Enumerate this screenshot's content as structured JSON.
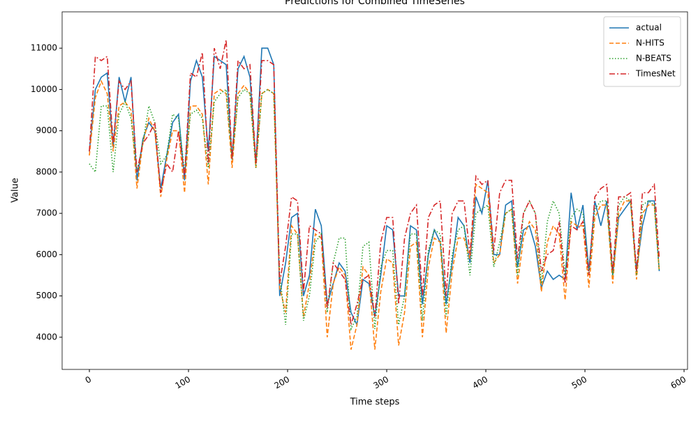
{
  "chart_data": {
    "type": "line",
    "title": "Predictions for Combined TimeSeries",
    "x_label": "Time steps",
    "y_label": "Value",
    "x": [
      0,
      6,
      12,
      18,
      24,
      30,
      36,
      42,
      48,
      54,
      60,
      66,
      72,
      78,
      84,
      90,
      96,
      102,
      108,
      114,
      120,
      126,
      132,
      138,
      144,
      150,
      156,
      162,
      168,
      174,
      180,
      186,
      192,
      198,
      204,
      210,
      216,
      222,
      228,
      234,
      240,
      246,
      252,
      258,
      264,
      270,
      276,
      282,
      288,
      294,
      300,
      306,
      312,
      318,
      324,
      330,
      336,
      342,
      348,
      354,
      360,
      366,
      372,
      378,
      384,
      390,
      396,
      402,
      408,
      414,
      420,
      426,
      432,
      438,
      444,
      450,
      456,
      462,
      468,
      474,
      480,
      486,
      492,
      498,
      504,
      510,
      516,
      522,
      528,
      534,
      540,
      546,
      552,
      558,
      564,
      570,
      575
    ],
    "series": [
      {
        "name": "actual",
        "color": "#1f77b4",
        "linestyle": "solid",
        "values": [
          8500,
          10000,
          10300,
          10400,
          8600,
          10300,
          9700,
          10300,
          7800,
          8800,
          9200,
          9000,
          7600,
          8400,
          9200,
          9400,
          7800,
          10200,
          10700,
          10300,
          8500,
          10800,
          10700,
          10600,
          8300,
          10500,
          10800,
          10300,
          8200,
          11000,
          11000,
          10600,
          5000,
          5800,
          6900,
          7000,
          5000,
          5500,
          7100,
          6700,
          4800,
          5300,
          5800,
          5600,
          4600,
          4300,
          5400,
          5300,
          4500,
          5500,
          6700,
          6600,
          5000,
          5000,
          6700,
          6600,
          4800,
          6000,
          6600,
          6300,
          4800,
          5800,
          6900,
          6700,
          5800,
          7400,
          7000,
          7800,
          6000,
          6000,
          7200,
          7300,
          5700,
          6600,
          6700,
          6200,
          5200,
          5600,
          5400,
          5500,
          5400,
          7500,
          6600,
          7200,
          5600,
          7300,
          6700,
          7300,
          5500,
          6900,
          7100,
          7300,
          5600,
          6700,
          7300,
          7300,
          5600
        ]
      },
      {
        "name": "N-HITS",
        "color": "#ff7f0e",
        "linestyle": "dashed",
        "values": [
          8400,
          9800,
          10200,
          9900,
          8500,
          9600,
          9700,
          9500,
          7600,
          8700,
          9300,
          9000,
          7400,
          8300,
          9000,
          9000,
          7500,
          9600,
          9600,
          9400,
          7700,
          9900,
          10000,
          9900,
          8100,
          9900,
          10100,
          9900,
          8100,
          9900,
          10000,
          9900,
          5200,
          4600,
          6700,
          6500,
          4500,
          5300,
          6500,
          6400,
          4000,
          5300,
          5700,
          5500,
          3700,
          4300,
          5700,
          5500,
          3700,
          5100,
          5900,
          5800,
          3800,
          4600,
          6200,
          6300,
          4000,
          5700,
          6400,
          6300,
          4100,
          5600,
          6400,
          6400,
          5900,
          7700,
          7600,
          7500,
          5800,
          6000,
          7000,
          7100,
          5300,
          6400,
          6800,
          6600,
          5100,
          6300,
          6700,
          6500,
          4900,
          6800,
          6700,
          6700,
          5200,
          6900,
          7200,
          7200,
          5300,
          7000,
          7300,
          7300,
          5400,
          7000,
          7200,
          7200,
          5600
        ]
      },
      {
        "name": "N-BEATS",
        "color": "#2ca02c",
        "linestyle": "dotted",
        "values": [
          8200,
          8000,
          9600,
          9600,
          8000,
          9400,
          9700,
          9300,
          8000,
          8700,
          9600,
          9200,
          8200,
          8400,
          9400,
          9300,
          8000,
          9400,
          9500,
          9300,
          8100,
          9700,
          9900,
          10000,
          8300,
          9800,
          10000,
          9900,
          8100,
          9900,
          10000,
          9900,
          5500,
          4300,
          6500,
          6500,
          4400,
          5000,
          6300,
          6500,
          4600,
          5800,
          6400,
          6400,
          4200,
          4500,
          6200,
          6300,
          4200,
          5700,
          6100,
          6100,
          4300,
          5000,
          6500,
          6500,
          4400,
          6100,
          6600,
          6500,
          4500,
          6000,
          6600,
          6700,
          5500,
          7000,
          7100,
          7200,
          5700,
          6300,
          7000,
          7100,
          5500,
          7000,
          7300,
          7000,
          5300,
          6800,
          7300,
          7000,
          5500,
          6900,
          7100,
          7000,
          5500,
          7100,
          7300,
          7300,
          5500,
          7200,
          7400,
          7300,
          5500,
          7200,
          7300,
          7200,
          5600
        ]
      },
      {
        "name": "TimesNet",
        "color": "#d62728",
        "linestyle": "dashdot",
        "values": [
          8500,
          10800,
          10700,
          10800,
          8700,
          10200,
          10000,
          10200,
          8000,
          8700,
          8900,
          9200,
          7500,
          8200,
          8000,
          9000,
          7900,
          10400,
          10300,
          10900,
          8200,
          11000,
          10500,
          11200,
          8300,
          10700,
          10500,
          10600,
          8200,
          10700,
          10700,
          10600,
          5300,
          6200,
          7400,
          7300,
          5100,
          6700,
          6600,
          6500,
          4700,
          5800,
          5600,
          5400,
          4300,
          4800,
          5400,
          5500,
          4500,
          6300,
          6900,
          6900,
          4800,
          6400,
          7000,
          7200,
          5000,
          6900,
          7200,
          7300,
          5000,
          7000,
          7300,
          7300,
          6000,
          7900,
          7700,
          7800,
          6100,
          7500,
          7800,
          7800,
          5900,
          7000,
          7300,
          7000,
          5600,
          6000,
          6100,
          6800,
          5300,
          6700,
          6600,
          6800,
          5500,
          7400,
          7600,
          7700,
          5600,
          7400,
          7400,
          7500,
          5600,
          7500,
          7500,
          7700,
          5900
        ]
      }
    ],
    "xlim": [
      -27.5,
      603.5
    ],
    "ylim": [
      3220,
      11880
    ],
    "xticks": [
      0,
      100,
      200,
      300,
      400,
      500,
      600
    ],
    "yticks": [
      4000,
      5000,
      6000,
      7000,
      8000,
      9000,
      10000,
      11000
    ],
    "legend": "upper right"
  }
}
